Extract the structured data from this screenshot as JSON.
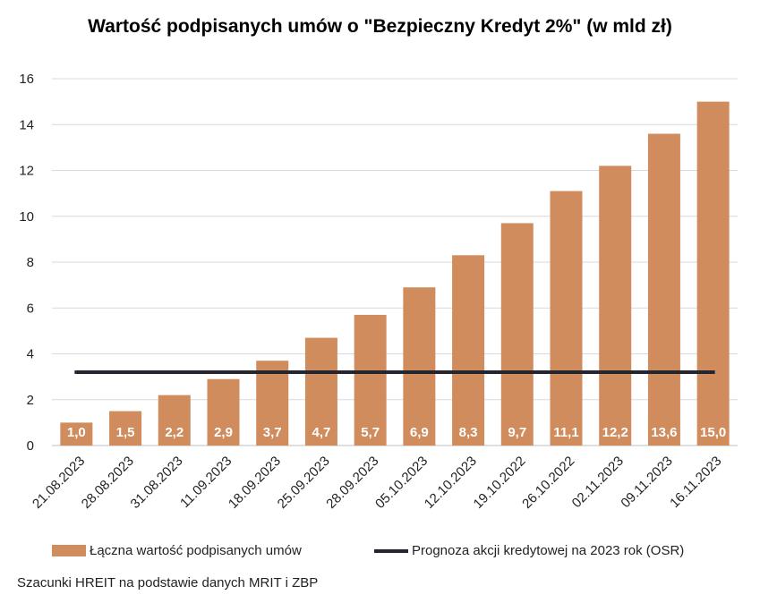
{
  "chart_data": {
    "type": "bar",
    "title": "Wartość podpisanych umów o \"Bezpieczny Kredyt 2%\" (w mld zł)",
    "categories": [
      "21.08.2023",
      "28.08.2023",
      "31.08.2023",
      "11.09.2023",
      "18.09.2023",
      "25.09.2023",
      "28.09.2023",
      "05.10.2023",
      "12.10.2023",
      "19.10.2022",
      "26.10.2022",
      "02.11.2023",
      "09.11.2023",
      "16.11.2023"
    ],
    "series": [
      {
        "name": "Łączna wartość podpisanych umów",
        "values": [
          1.0,
          1.5,
          2.2,
          2.9,
          3.7,
          4.7,
          5.7,
          6.9,
          8.3,
          9.7,
          11.1,
          12.2,
          13.6,
          15.0
        ],
        "labels": [
          "1,0",
          "1,5",
          "2,2",
          "2,9",
          "3,7",
          "4,7",
          "5,7",
          "6,9",
          "8,3",
          "9,7",
          "11,1",
          "12,2",
          "13,6",
          "15,0"
        ],
        "color": "#d08c5c"
      }
    ],
    "reference_line": {
      "name": "Prognoza akcji kredytowej na 2023 rok (OSR)",
      "value": 3.2,
      "color": "#252530"
    },
    "ylim": [
      0,
      16
    ],
    "yticks": [
      0,
      2,
      4,
      6,
      8,
      10,
      12,
      14,
      16
    ],
    "grid": true,
    "legend_position": "bottom"
  },
  "source_note": "Szacunki HREIT na podstawie danych MRIT i ZBP"
}
